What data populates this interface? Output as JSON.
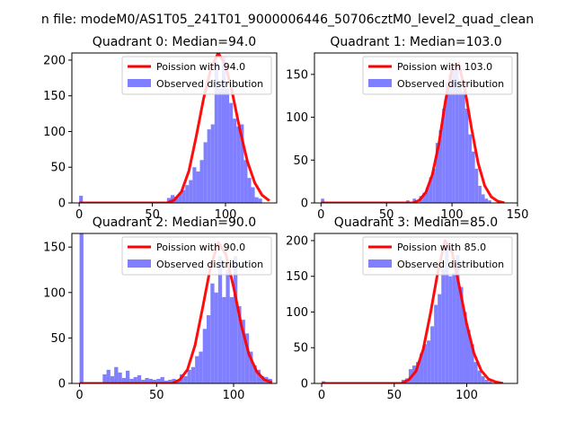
{
  "figure": {
    "suptitle": "n file: modeM0/AS1T05_241T01_9000006446_50706cztM0_level2_quad_clean"
  },
  "colors": {
    "hist": "#7f7fff",
    "poisson": "#ff0000",
    "axis": "#000000",
    "background": "#ffffff"
  },
  "chart_data": [
    {
      "type": "bar",
      "title": "Quadrant 0: Median=94.0",
      "xlim": [
        -5,
        135
      ],
      "ylim": [
        0,
        210
      ],
      "xticks": [
        0,
        50,
        100
      ],
      "yticks": [
        0,
        50,
        100,
        150,
        200
      ],
      "legend": {
        "placement": "top-right",
        "entries": [
          "Poission with 94.0",
          "Observed distribution"
        ]
      },
      "series": [
        {
          "name": "Observed distribution",
          "kind": "histogram",
          "bin_width": 2.5,
          "bins": [
            [
              0,
              10
            ],
            [
              60,
              7
            ],
            [
              62.5,
              11
            ],
            [
              65,
              9
            ],
            [
              67.5,
              13
            ],
            [
              70,
              18
            ],
            [
              72.5,
              25
            ],
            [
              75,
              32
            ],
            [
              77.5,
              50
            ],
            [
              80,
              44
            ],
            [
              82.5,
              60
            ],
            [
              85,
              85
            ],
            [
              87.5,
              103
            ],
            [
              90,
              110
            ],
            [
              92.5,
              198
            ],
            [
              95,
              160
            ],
            [
              97.5,
              205
            ],
            [
              100,
              160
            ],
            [
              102.5,
              140
            ],
            [
              105,
              118
            ],
            [
              107.5,
              107
            ],
            [
              110,
              110
            ],
            [
              112.5,
              60
            ],
            [
              115,
              35
            ],
            [
              117.5,
              22
            ],
            [
              120,
              8
            ],
            [
              122.5,
              6
            ]
          ]
        },
        {
          "name": "Poission with 94.0",
          "kind": "line",
          "mean": 94.0,
          "scale": 210,
          "points": [
            [
              0,
              0
            ],
            [
              60,
              0
            ],
            [
              65,
              4
            ],
            [
              70,
              16
            ],
            [
              75,
              45
            ],
            [
              80,
              93
            ],
            [
              85,
              146
            ],
            [
              90,
              188
            ],
            [
              95,
              210
            ],
            [
              100,
              193
            ],
            [
              105,
              151
            ],
            [
              110,
              101
            ],
            [
              115,
              58
            ],
            [
              120,
              28
            ],
            [
              125,
              11
            ],
            [
              130,
              3
            ]
          ]
        }
      ]
    },
    {
      "type": "bar",
      "title": "Quadrant 1: Median=103.0",
      "xlim": [
        -5,
        150
      ],
      "ylim": [
        0,
        175
      ],
      "xticks": [
        0,
        50,
        100,
        150
      ],
      "yticks": [
        0,
        50,
        100,
        150
      ],
      "legend": {
        "placement": "top-right",
        "entries": [
          "Poission with 103.0",
          "Observed distribution"
        ]
      },
      "series": [
        {
          "name": "Observed distribution",
          "kind": "histogram",
          "bin_width": 2.5,
          "bins": [
            [
              0,
              5
            ],
            [
              65,
              3
            ],
            [
              70,
              5
            ],
            [
              75,
              8
            ],
            [
              77.5,
              12
            ],
            [
              80,
              18
            ],
            [
              82.5,
              30
            ],
            [
              85,
              40
            ],
            [
              87.5,
              70
            ],
            [
              90,
              85
            ],
            [
              92.5,
              110
            ],
            [
              95,
              140
            ],
            [
              97.5,
              150
            ],
            [
              100,
              155
            ],
            [
              102.5,
              160
            ],
            [
              105,
              140
            ],
            [
              107.5,
              130
            ],
            [
              110,
              110
            ],
            [
              112.5,
              80
            ],
            [
              115,
              60
            ],
            [
              117.5,
              40
            ],
            [
              120,
              20
            ],
            [
              122.5,
              10
            ],
            [
              125,
              5
            ],
            [
              127.5,
              3
            ]
          ]
        },
        {
          "name": "Poission with 103.0",
          "kind": "line",
          "mean": 103.0,
          "scale": 165,
          "points": [
            [
              0,
              0
            ],
            [
              70,
              0
            ],
            [
              75,
              3
            ],
            [
              80,
              12
            ],
            [
              85,
              33
            ],
            [
              90,
              69
            ],
            [
              95,
              119
            ],
            [
              100,
              156
            ],
            [
              105,
              163
            ],
            [
              110,
              131
            ],
            [
              115,
              86
            ],
            [
              120,
              46
            ],
            [
              125,
              20
            ],
            [
              130,
              7
            ],
            [
              135,
              2
            ],
            [
              140,
              0
            ]
          ]
        }
      ]
    },
    {
      "type": "bar",
      "title": "Quadrant 2: Median=90.0",
      "xlim": [
        -5,
        128
      ],
      "ylim": [
        0,
        165
      ],
      "xticks": [
        0,
        50,
        100
      ],
      "yticks": [
        0,
        50,
        100,
        150
      ],
      "legend": {
        "placement": "top-right",
        "entries": [
          "Poission with 90.0",
          "Observed distribution"
        ]
      },
      "series": [
        {
          "name": "Observed distribution",
          "kind": "histogram",
          "bin_width": 2.5,
          "bins": [
            [
              0,
              165
            ],
            [
              15,
              10
            ],
            [
              17.5,
              15
            ],
            [
              20,
              8
            ],
            [
              22.5,
              18
            ],
            [
              25,
              12
            ],
            [
              27.5,
              6
            ],
            [
              30,
              14
            ],
            [
              32.5,
              5
            ],
            [
              35,
              7
            ],
            [
              37.5,
              9
            ],
            [
              40,
              4
            ],
            [
              42.5,
              6
            ],
            [
              45,
              5
            ],
            [
              47.5,
              4
            ],
            [
              50,
              5
            ],
            [
              52.5,
              7
            ],
            [
              55,
              3
            ],
            [
              57.5,
              4
            ],
            [
              60,
              5
            ],
            [
              62.5,
              4
            ],
            [
              65,
              10
            ],
            [
              67.5,
              8
            ],
            [
              70,
              15
            ],
            [
              72.5,
              18
            ],
            [
              75,
              30
            ],
            [
              77.5,
              35
            ],
            [
              80,
              60
            ],
            [
              82.5,
              75
            ],
            [
              85,
              110
            ],
            [
              87.5,
              100
            ],
            [
              90,
              140
            ],
            [
              92.5,
              95
            ],
            [
              95,
              125
            ],
            [
              97.5,
              95
            ],
            [
              100,
              140
            ],
            [
              102.5,
              85
            ],
            [
              105,
              70
            ],
            [
              107.5,
              55
            ],
            [
              110,
              35
            ],
            [
              112.5,
              20
            ],
            [
              115,
              15
            ],
            [
              117.5,
              8
            ],
            [
              120,
              7
            ],
            [
              122.5,
              5
            ]
          ]
        },
        {
          "name": "Poission with 90.0",
          "kind": "line",
          "mean": 90.0,
          "scale": 155,
          "points": [
            [
              0,
              0
            ],
            [
              60,
              0
            ],
            [
              65,
              4
            ],
            [
              70,
              15
            ],
            [
              75,
              42
            ],
            [
              80,
              84
            ],
            [
              85,
              128
            ],
            [
              90,
              155
            ],
            [
              95,
              142
            ],
            [
              100,
              106
            ],
            [
              105,
              64
            ],
            [
              110,
              32
            ],
            [
              115,
              13
            ],
            [
              120,
              4
            ],
            [
              125,
              1
            ]
          ]
        }
      ]
    },
    {
      "type": "bar",
      "title": "Quadrant 3: Median=85.0",
      "xlim": [
        -5,
        135
      ],
      "ylim": [
        0,
        210
      ],
      "xticks": [
        0,
        50,
        100
      ],
      "yticks": [
        0,
        50,
        100,
        150,
        200
      ],
      "legend": {
        "placement": "top-right",
        "entries": [
          "Poission with 85.0",
          "Observed distribution"
        ]
      },
      "series": [
        {
          "name": "Observed distribution",
          "kind": "histogram",
          "bin_width": 2.5,
          "bins": [
            [
              0,
              3
            ],
            [
              55,
              5
            ],
            [
              57.5,
              7
            ],
            [
              60,
              20
            ],
            [
              62.5,
              25
            ],
            [
              65,
              30
            ],
            [
              67.5,
              42
            ],
            [
              70,
              55
            ],
            [
              72.5,
              60
            ],
            [
              75,
              80
            ],
            [
              77.5,
              110
            ],
            [
              80,
              125
            ],
            [
              82.5,
              160
            ],
            [
              85,
              195
            ],
            [
              87.5,
              150
            ],
            [
              90,
              155
            ],
            [
              92.5,
              180
            ],
            [
              95,
              135
            ],
            [
              97.5,
              100
            ],
            [
              100,
              75
            ],
            [
              102.5,
              55
            ],
            [
              105,
              30
            ],
            [
              107.5,
              18
            ],
            [
              110,
              10
            ],
            [
              112.5,
              5
            ],
            [
              115,
              3
            ]
          ]
        },
        {
          "name": "Poission with 85.0",
          "kind": "line",
          "mean": 85.0,
          "scale": 200,
          "points": [
            [
              0,
              0
            ],
            [
              55,
              0
            ],
            [
              60,
              5
            ],
            [
              65,
              17
            ],
            [
              70,
              48
            ],
            [
              75,
              98
            ],
            [
              80,
              155
            ],
            [
              85,
              200
            ],
            [
              90,
              183
            ],
            [
              95,
              135
            ],
            [
              100,
              83
            ],
            [
              105,
              42
            ],
            [
              110,
              18
            ],
            [
              115,
              6
            ],
            [
              120,
              2
            ],
            [
              125,
              0
            ]
          ]
        }
      ]
    }
  ]
}
